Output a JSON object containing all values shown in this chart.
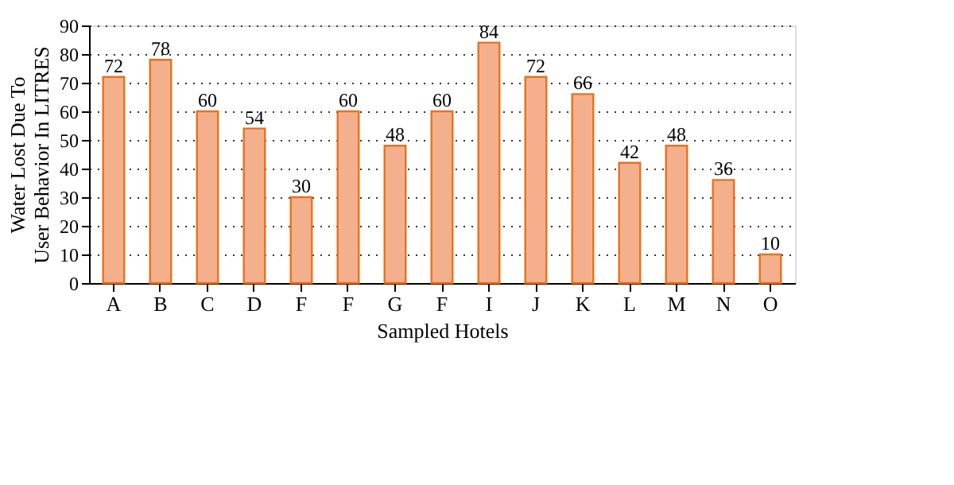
{
  "chart_data": {
    "type": "bar",
    "xlabel": "Sampled Hotels",
    "ylabel": "Water Lost Due To User Behavior In LITRES",
    "categories": [
      "A",
      "B",
      "C",
      "D",
      "F",
      "F",
      "G",
      "F",
      "I",
      "J",
      "K",
      "L",
      "M",
      "N",
      "O"
    ],
    "values": [
      72,
      78,
      60,
      54,
      30,
      60,
      48,
      60,
      84,
      72,
      66,
      42,
      48,
      36,
      10
    ],
    "color": "#f4b08c",
    "ylim": [
      0,
      90
    ],
    "yticks": [
      0,
      10,
      20,
      30,
      40,
      50,
      60,
      70,
      80,
      90
    ],
    "grid": "y",
    "data_labels": true
  }
}
